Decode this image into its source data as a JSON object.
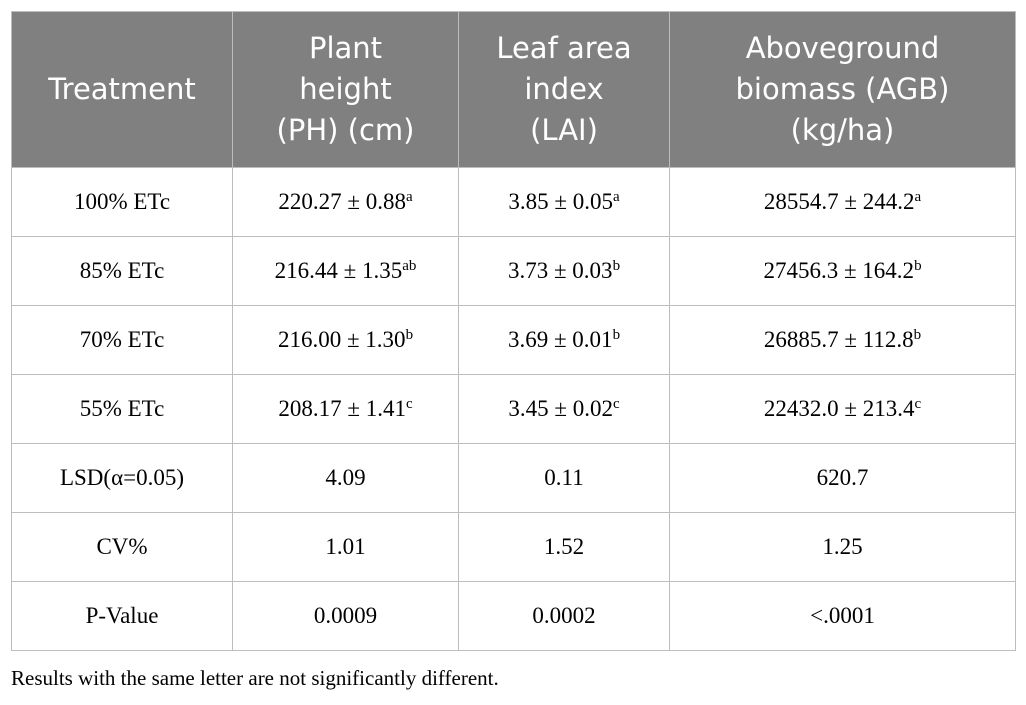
{
  "table": {
    "header": [
      [
        "Treatment"
      ],
      [
        "Plant",
        "height",
        "(PH) (cm)"
      ],
      [
        "Leaf area",
        "index",
        "(LAI)"
      ],
      [
        "Aboveground",
        "biomass (AGB)",
        "(kg/ha)"
      ]
    ],
    "rows": [
      [
        "100% ETc",
        {
          "text": "220.27 ± 0.88",
          "sup": "a"
        },
        {
          "text": "3.85 ± 0.05",
          "sup": "a"
        },
        {
          "text": "28554.7 ± 244.2",
          "sup": "a"
        }
      ],
      [
        "85% ETc",
        {
          "text": "216.44 ± 1.35",
          "sup": "ab"
        },
        {
          "text": "3.73 ± 0.03",
          "sup": "b"
        },
        {
          "text": "27456.3 ± 164.2",
          "sup": "b"
        }
      ],
      [
        "70% ETc",
        {
          "text": "216.00 ± 1.30",
          "sup": "b"
        },
        {
          "text": "3.69 ± 0.01",
          "sup": "b"
        },
        {
          "text": "26885.7 ± 112.8",
          "sup": "b"
        }
      ],
      [
        "55% ETc",
        {
          "text": "208.17 ± 1.41",
          "sup": "c"
        },
        {
          "text": "3.45 ± 0.02",
          "sup": "c"
        },
        {
          "text": "22432.0 ± 213.4",
          "sup": "c"
        }
      ],
      [
        "LSD(α=0.05)",
        "4.09",
        "0.11",
        "620.7"
      ],
      [
        "CV%",
        "1.01",
        "1.52",
        "1.25"
      ],
      [
        "P-Value",
        "0.0009",
        "0.0002",
        "<.0001"
      ]
    ]
  },
  "footnote": "Results with the same letter are not significantly different."
}
